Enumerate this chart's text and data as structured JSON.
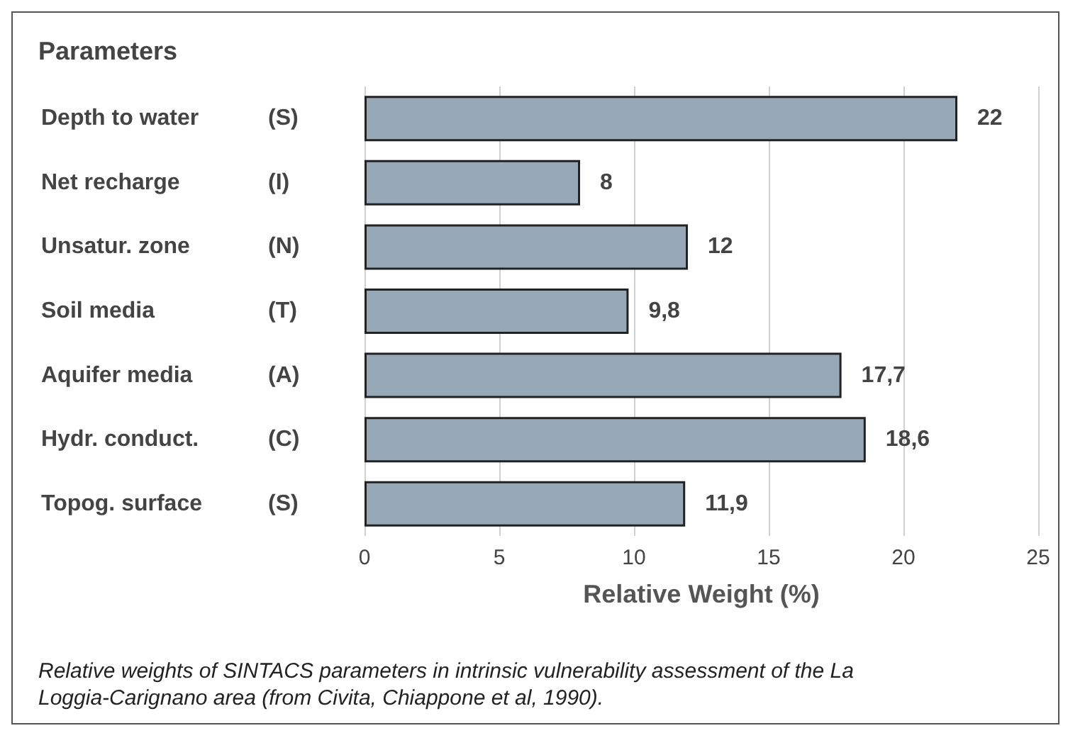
{
  "chart_data": {
    "type": "bar",
    "orientation": "horizontal",
    "xlabel": "Relative Weight (%)",
    "categories": [
      "Depth to water (S)",
      "Net recharge (I)",
      "Unsatur. zone (N)",
      "Soil media (T)",
      "Aquifer media (A)",
      "Hydr. conduct. (C)",
      "Topog. surface (S)"
    ],
    "values": [
      22,
      8,
      12,
      9.8,
      17.7,
      18.6,
      11.9
    ],
    "value_labels": [
      "22",
      "8",
      "12",
      "9,8",
      "17,7",
      "18,6",
      "11,9"
    ],
    "color": "#97a9b7",
    "xlim": [
      0,
      25
    ],
    "xticks": [
      0,
      5,
      10,
      15,
      20,
      25
    ],
    "grid": "x",
    "annotations": [
      "Parameters",
      "Relative weights of SINTACS parameters in intrinsic vulnerability assessment of the La Loggia-Carignano area (from Civita, Chiappone et al, 1990)."
    ]
  }
}
